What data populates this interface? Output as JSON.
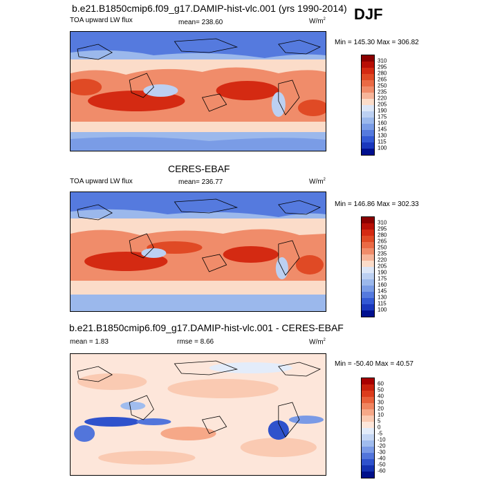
{
  "season": "DJF",
  "panels": [
    {
      "title": "b.e21.B1850cmip6.f09_g17.DAMIP-hist-vlc.001 (yrs 1990-2014)",
      "left_label": "TOA upward LW flux",
      "center_label": "mean= 238.60",
      "units_base": "W/m",
      "units_exp": "2",
      "minmax": "Min = 145.30 Max = 306.82",
      "colorbar": {
        "levels": [
          "310",
          "295",
          "280",
          "265",
          "250",
          "235",
          "220",
          "205",
          "190",
          "175",
          "160",
          "145",
          "130",
          "115",
          "100"
        ],
        "colors": [
          "#8b0000",
          "#b80f06",
          "#d42a12",
          "#e04a25",
          "#ea6a45",
          "#f08c6a",
          "#f6b59a",
          "#fbdcc9",
          "#dce6f7",
          "#bcd0f2",
          "#9bb8ec",
          "#7a9ce6",
          "#557ade",
          "#3359d4",
          "#1a38bd",
          "#00108f"
        ]
      }
    },
    {
      "title": "CERES-EBAF",
      "left_label": "TOA upward LW flux",
      "center_label": "mean= 236.77",
      "units_base": "W/m",
      "units_exp": "2",
      "minmax": "Min = 146.86 Max = 302.33",
      "colorbar": {
        "levels": [
          "310",
          "295",
          "280",
          "265",
          "250",
          "235",
          "220",
          "205",
          "190",
          "175",
          "160",
          "145",
          "130",
          "115",
          "100"
        ],
        "colors": [
          "#8b0000",
          "#b80f06",
          "#d42a12",
          "#e04a25",
          "#ea6a45",
          "#f08c6a",
          "#f6b59a",
          "#fbdcc9",
          "#dce6f7",
          "#bcd0f2",
          "#9bb8ec",
          "#7a9ce6",
          "#557ade",
          "#3359d4",
          "#1a38bd",
          "#00108f"
        ]
      }
    },
    {
      "title": "b.e21.B1850cmip6.f09_g17.DAMIP-hist-vlc.001 - CERES-EBAF",
      "left_label": "mean = 1.83",
      "center_label": "rmse = 8.66",
      "units_base": "W/m",
      "units_exp": "2",
      "minmax": "Min = -50.40 Max = 40.57",
      "colorbar": {
        "levels": [
          "60",
          "50",
          "40",
          "30",
          "20",
          "10",
          "5",
          "0",
          "-5",
          "-10",
          "-20",
          "-30",
          "-40",
          "-50",
          "-60"
        ],
        "colors": [
          "#a80000",
          "#c8200c",
          "#dc3c1c",
          "#e8603a",
          "#f08560",
          "#f6a888",
          "#facab2",
          "#fde6da",
          "#e3ecfa",
          "#c4d6f4",
          "#a0bcee",
          "#7a9ae6",
          "#5275db",
          "#2f52cc",
          "#1431b0",
          "#00108a"
        ]
      }
    }
  ]
}
